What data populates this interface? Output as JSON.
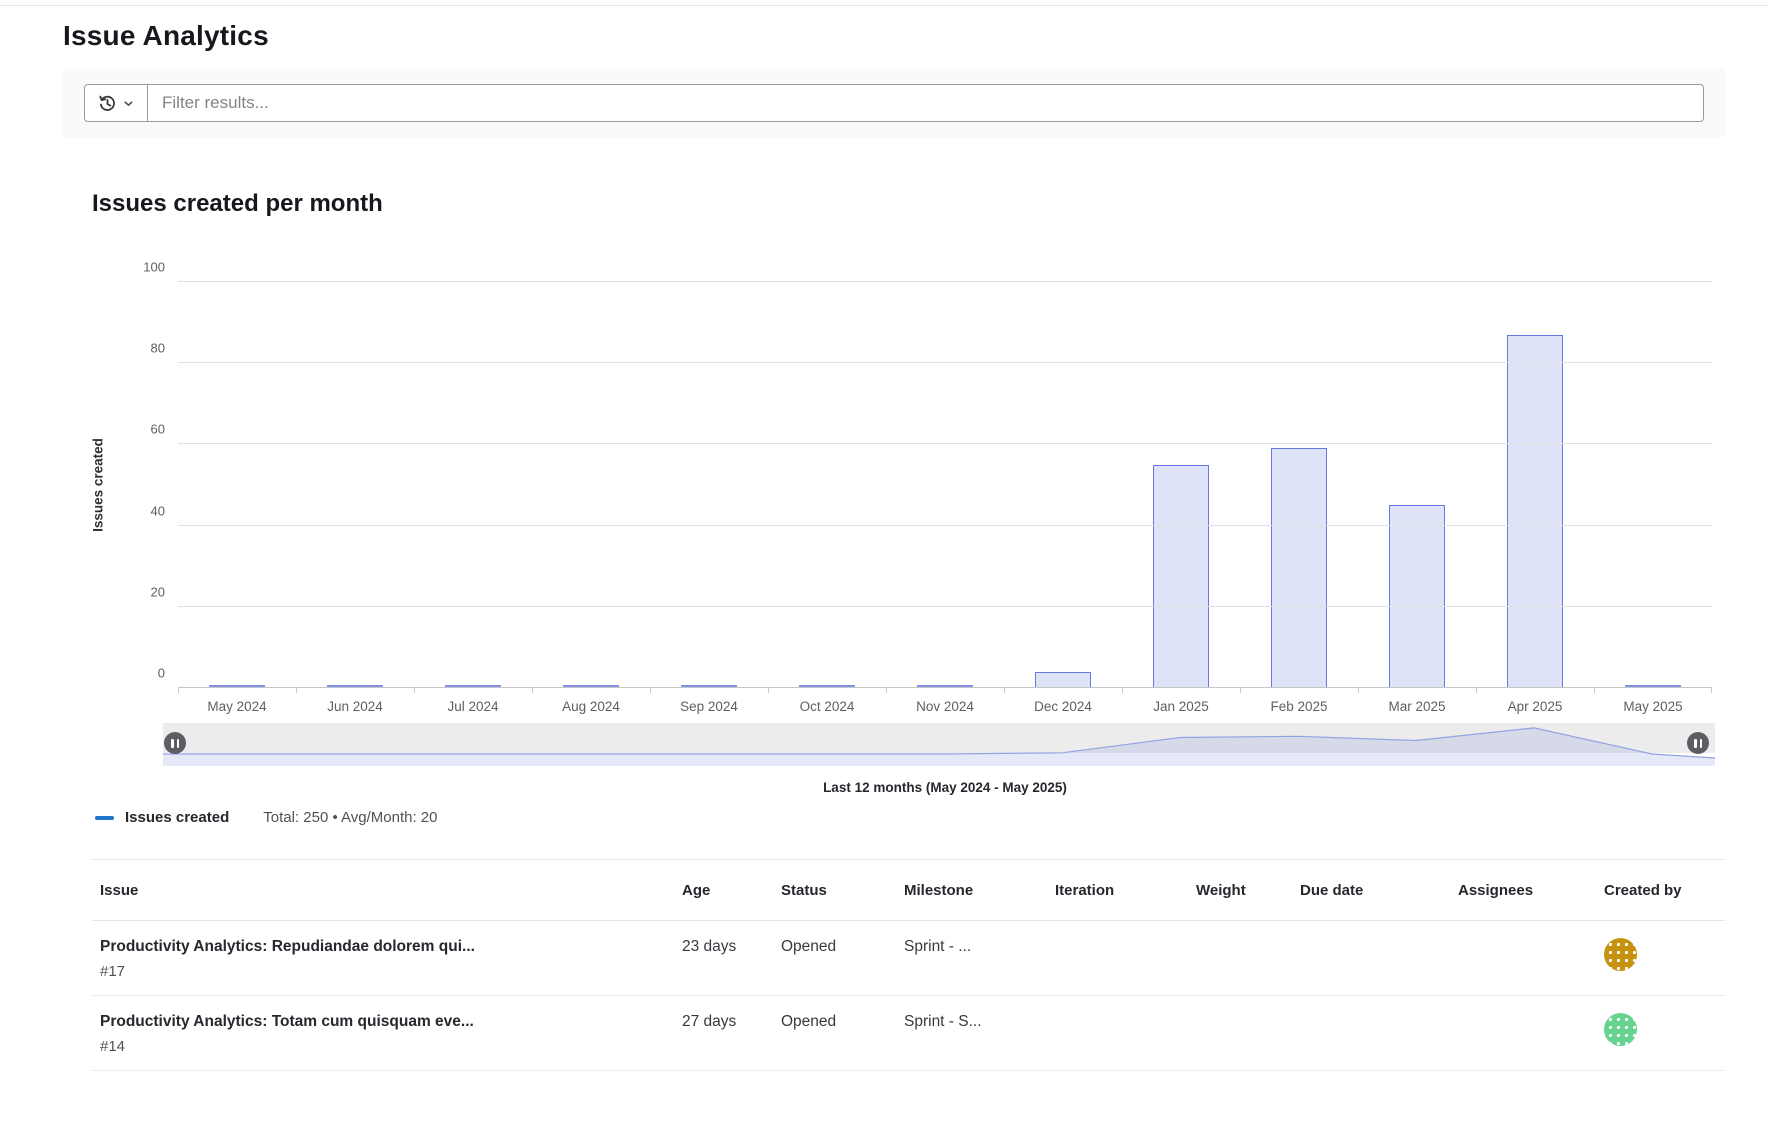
{
  "page": {
    "title": "Issue Analytics"
  },
  "filter": {
    "placeholder": "Filter results...",
    "history_icon": "history-icon",
    "chevron_icon": "chevron-down-icon"
  },
  "chart": {
    "title": "Issues created per month",
    "y_axis_name": "Issues created",
    "caption": "Last 12 months (May 2024 - May 2025)",
    "legend": {
      "label": "Issues created",
      "stats": "Total: 250 • Avg/Month: 20",
      "dash_color": "#1f75cb"
    }
  },
  "chart_data": {
    "type": "bar",
    "title": "Issues created per month",
    "series_name": "Issues created",
    "categories": [
      "May 2024",
      "Jun 2024",
      "Jul 2024",
      "Aug 2024",
      "Sep 2024",
      "Oct 2024",
      "Nov 2024",
      "Dec 2024",
      "Jan 2025",
      "Feb 2025",
      "Mar 2025",
      "Apr 2025",
      "May 2025"
    ],
    "values": [
      0,
      0,
      0,
      0,
      0,
      0,
      0,
      4,
      55,
      59,
      45,
      87,
      0
    ],
    "xlabel": "",
    "ylabel": "Issues created",
    "ylim": [
      0,
      100
    ],
    "yticks": [
      0,
      20,
      40,
      60,
      80,
      100
    ],
    "grid": true,
    "legend_position": "bottom-left",
    "total": 250,
    "avg_per_month": 20,
    "bar_fill": "#dfe3f8",
    "bar_border": "#6577e2"
  },
  "table": {
    "columns": [
      "Issue",
      "Age",
      "Status",
      "Milestone",
      "Iteration",
      "Weight",
      "Due date",
      "Assignees",
      "Created by"
    ],
    "rows": [
      {
        "title": "Productivity Analytics: Repudiandae dolorem qui...",
        "id": "#17",
        "age": "23 days",
        "status": "Opened",
        "milestone": "Sprint - ...",
        "iteration": "",
        "weight": "",
        "due_date": "",
        "assignees": "",
        "created_by_color": "#c6920f"
      },
      {
        "title": "Productivity Analytics: Totam cum quisquam eve...",
        "id": "#14",
        "age": "27 days",
        "status": "Opened",
        "milestone": "Sprint - S...",
        "iteration": "",
        "weight": "",
        "due_date": "",
        "assignees": "",
        "created_by_color": "#66d48e"
      }
    ]
  }
}
